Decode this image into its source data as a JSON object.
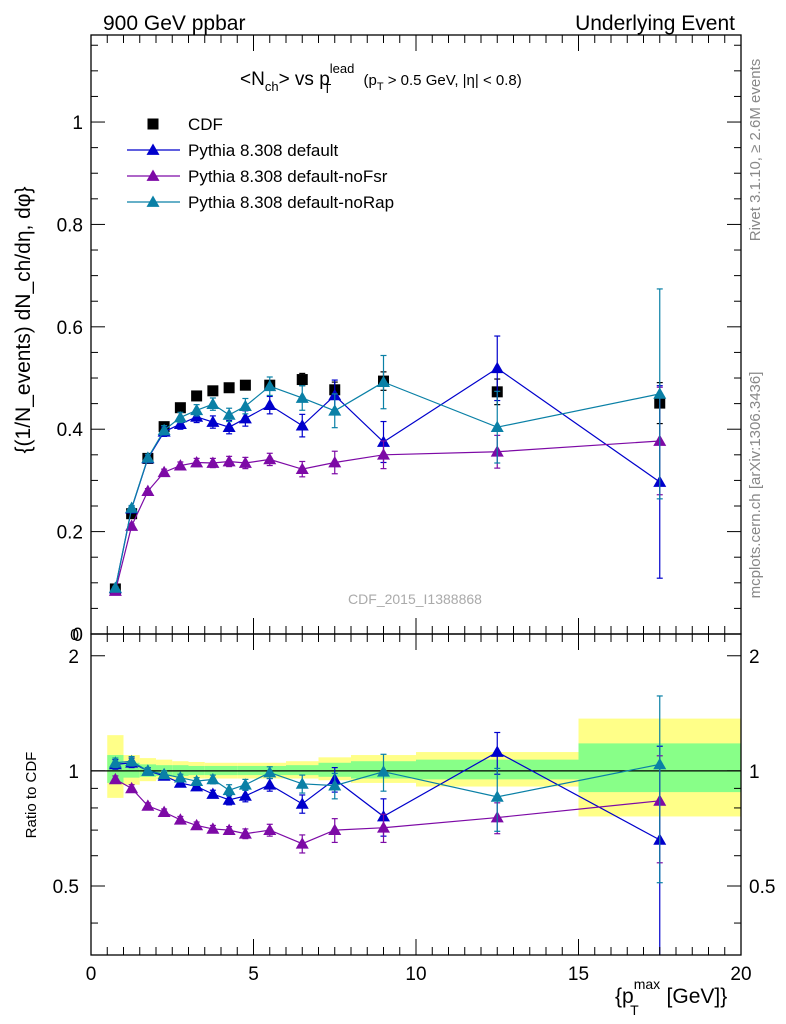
{
  "header": {
    "left": "900 GeV ppbar",
    "right": "Underlying Event"
  },
  "side_labels": {
    "rivet": "Rivet 3.1.10, ≥ 2.6M events",
    "mcplots": "mcplots.cern.ch [arXiv:1306.3436]"
  },
  "watermark": "CDF_2015_I1388868",
  "colors": {
    "cdf": "#000000",
    "default": "#0000cc",
    "noFsr": "#7d0aa6",
    "noRap": "#0a80a6",
    "band_outer": "#ffff88",
    "band_inner": "#88ff88"
  },
  "chart_data": [
    {
      "type": "scatter",
      "title": "<N_ch> vs p_T^lead (p_T > 0.5 GeV, |η| < 0.8)",
      "title_parts": {
        "main": "<N",
        "sub1": "ch",
        "mid": "> vs p",
        "sup": "lead",
        "sub2": "T",
        "tail1": " (p",
        "sub3": "T",
        "tail2": " > 0.5 GeV, |η| < 0.8)"
      },
      "ylabel": "{(1/N_events) dN_ch/dη, dφ}",
      "ylim": [
        0,
        1.17
      ],
      "xlim": [
        0,
        20
      ],
      "yticks": [
        "0",
        "0.2",
        "0.4",
        "0.6",
        "0.8",
        "1"
      ],
      "legend_position": "top-left",
      "x": [
        0.75,
        1.25,
        1.75,
        2.25,
        2.75,
        3.25,
        3.75,
        4.25,
        4.75,
        5.5,
        6.5,
        7.5,
        9.0,
        12.5,
        17.5
      ],
      "series": [
        {
          "name": "CDF",
          "marker": "square",
          "values": [
            0.088,
            0.235,
            0.343,
            0.405,
            0.442,
            0.465,
            0.475,
            0.481,
            0.486,
            0.486,
            0.497,
            0.477,
            0.494,
            0.473,
            0.451
          ],
          "errors": [
            0.003,
            0.004,
            0.004,
            0.004,
            0.004,
            0.004,
            0.005,
            0.005,
            0.006,
            0.008,
            0.012,
            0.015,
            0.018,
            0.025,
            0.04
          ]
        },
        {
          "name": "Pythia 8.308 default",
          "marker": "triangle",
          "values": [
            0.089,
            0.245,
            0.343,
            0.395,
            0.41,
            0.424,
            0.414,
            0.404,
            0.421,
            0.447,
            0.407,
            0.466,
            0.375,
            0.519,
            0.297
          ],
          "errors": [
            0.003,
            0.005,
            0.007,
            0.009,
            0.01,
            0.011,
            0.012,
            0.013,
            0.015,
            0.017,
            0.022,
            0.03,
            0.04,
            0.063,
            0.188
          ]
        },
        {
          "name": "Pythia 8.308 default-noFsr",
          "marker": "triangle",
          "values": [
            0.084,
            0.211,
            0.279,
            0.316,
            0.329,
            0.335,
            0.334,
            0.337,
            0.334,
            0.341,
            0.322,
            0.335,
            0.35,
            0.356,
            0.377
          ],
          "errors": [
            0.003,
            0.004,
            0.005,
            0.006,
            0.007,
            0.008,
            0.009,
            0.01,
            0.011,
            0.012,
            0.015,
            0.022,
            0.027,
            0.032,
            0.105
          ]
        },
        {
          "name": "Pythia 8.308 default-noRap",
          "marker": "triangle",
          "values": [
            0.09,
            0.246,
            0.344,
            0.398,
            0.423,
            0.437,
            0.449,
            0.428,
            0.445,
            0.484,
            0.461,
            0.436,
            0.492,
            0.404,
            0.469
          ],
          "errors": [
            0.003,
            0.005,
            0.007,
            0.009,
            0.01,
            0.011,
            0.012,
            0.013,
            0.015,
            0.018,
            0.024,
            0.033,
            0.052,
            0.07,
            0.205
          ]
        }
      ]
    },
    {
      "type": "scatter",
      "ylabel": "Ratio to CDF",
      "xlabel": "{p_T^max [GeV]}",
      "xlabel_parts": {
        "pre": "{p",
        "sup": "max",
        "sub": "T",
        "post": " [GeV]}"
      },
      "ylim": [
        0.33,
        2.28
      ],
      "xlim": [
        0,
        20
      ],
      "yticks": [
        "0.5",
        "1",
        "2"
      ],
      "xticks": [
        "0",
        "5",
        "10",
        "15",
        "20"
      ],
      "bands": {
        "edges": [
          0.5,
          1.0,
          1.5,
          2.0,
          2.5,
          3.0,
          3.5,
          4.0,
          4.5,
          5.0,
          6.0,
          7.0,
          8.0,
          10.0,
          15.0,
          20.0
        ],
        "outer": [
          [
            0.85,
            1.24
          ],
          [
            0.92,
            1.1
          ],
          [
            0.94,
            1.08
          ],
          [
            0.95,
            1.07
          ],
          [
            0.95,
            1.06
          ],
          [
            0.955,
            1.055
          ],
          [
            0.955,
            1.05
          ],
          [
            0.955,
            1.05
          ],
          [
            0.955,
            1.05
          ],
          [
            0.955,
            1.05
          ],
          [
            0.955,
            1.06
          ],
          [
            0.945,
            1.085
          ],
          [
            0.93,
            1.1
          ],
          [
            0.91,
            1.12
          ],
          [
            0.76,
            1.37
          ]
        ],
        "inner": [
          [
            0.93,
            1.1
          ],
          [
            0.96,
            1.05
          ],
          [
            0.965,
            1.04
          ],
          [
            0.97,
            1.035
          ],
          [
            0.97,
            1.035
          ],
          [
            0.975,
            1.03
          ],
          [
            0.975,
            1.03
          ],
          [
            0.975,
            1.03
          ],
          [
            0.975,
            1.03
          ],
          [
            0.975,
            1.03
          ],
          [
            0.975,
            1.035
          ],
          [
            0.965,
            1.05
          ],
          [
            0.955,
            1.06
          ],
          [
            0.95,
            1.07
          ],
          [
            0.88,
            1.18
          ]
        ]
      },
      "x": [
        0.75,
        1.25,
        1.75,
        2.25,
        2.75,
        3.25,
        3.75,
        4.25,
        4.75,
        5.5,
        6.5,
        7.5,
        9.0,
        12.5,
        17.5
      ],
      "series": [
        {
          "name": "Pythia 8.308 default",
          "values": [
            1.04,
            1.05,
            1.0,
            0.97,
            0.93,
            0.91,
            0.87,
            0.84,
            0.86,
            0.92,
            0.82,
            0.95,
            0.76,
            1.12,
            0.66
          ],
          "errors": [
            0.03,
            0.03,
            0.02,
            0.02,
            0.02,
            0.02,
            0.02,
            0.025,
            0.03,
            0.035,
            0.045,
            0.07,
            0.085,
            0.14,
            0.5
          ]
        },
        {
          "name": "Pythia 8.308 default-noFsr",
          "values": [
            0.95,
            0.9,
            0.81,
            0.78,
            0.745,
            0.72,
            0.705,
            0.7,
            0.685,
            0.7,
            0.645,
            0.7,
            0.71,
            0.755,
            0.835
          ],
          "errors": [
            0.02,
            0.02,
            0.015,
            0.015,
            0.015,
            0.015,
            0.015,
            0.015,
            0.02,
            0.025,
            0.035,
            0.05,
            0.06,
            0.07,
            0.26
          ]
        },
        {
          "name": "Pythia 8.308 default-noRap",
          "values": [
            1.05,
            1.06,
            1.0,
            0.98,
            0.96,
            0.94,
            0.95,
            0.89,
            0.92,
            0.99,
            0.925,
            0.915,
            0.995,
            0.855,
            1.04
          ],
          "errors": [
            0.03,
            0.03,
            0.02,
            0.02,
            0.02,
            0.02,
            0.025,
            0.03,
            0.03,
            0.035,
            0.05,
            0.07,
            0.11,
            0.16,
            0.53
          ]
        }
      ]
    }
  ]
}
